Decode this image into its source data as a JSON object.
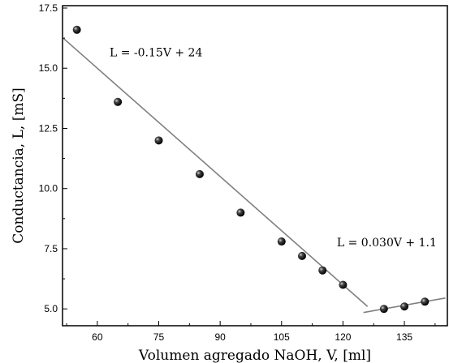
{
  "chart_data": {
    "type": "scatter",
    "xlabel": "Volumen agregado NaOH, V, [ml]",
    "ylabel": "Conductancia, L, [mS]",
    "xlim": [
      51.5,
      145.5
    ],
    "ylim": [
      4.3,
      17.6
    ],
    "xticks": [
      60,
      75,
      90,
      105,
      120,
      135
    ],
    "yticks": [
      5.0,
      7.5,
      10.0,
      12.5,
      15.0,
      17.5
    ],
    "xtick_labels": [
      "60",
      "75",
      "90",
      "105",
      "120",
      "135"
    ],
    "ytick_labels": [
      "5.0",
      "7.5",
      "10.0",
      "12.5",
      "15.0",
      "17.5"
    ],
    "grid": false,
    "series": [
      {
        "x": [
          55,
          65,
          75,
          85,
          95,
          105,
          110,
          115,
          120,
          130,
          135,
          140
        ],
        "y": [
          16.6,
          13.6,
          12.0,
          10.6,
          9.0,
          7.8,
          7.2,
          6.6,
          6.0,
          5.0,
          5.1,
          5.3
        ]
      }
    ],
    "fit_lines": [
      {
        "equation": "L = -0.15V + 24",
        "slope": -0.15,
        "intercept": 24,
        "x_range": [
          51.5,
          126
        ]
      },
      {
        "equation": "L = 0.030V + 1.1",
        "slope": 0.03,
        "intercept": 1.1,
        "x_range": [
          125,
          145
        ]
      }
    ],
    "annotations": [
      {
        "text": "L = -0.15V + 24",
        "x": 63,
        "y": 15.5
      },
      {
        "text": "L = 0.030V + 1.1",
        "x": 118.5,
        "y": 7.6
      }
    ]
  }
}
